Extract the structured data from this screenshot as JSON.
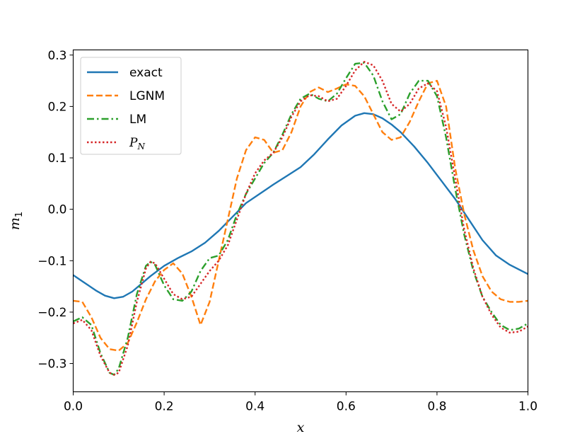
{
  "chart_data": {
    "type": "line",
    "title": "",
    "xlabel": "x",
    "ylabel": "m",
    "ylabel_sub": "1",
    "xlim": [
      0.0,
      1.0
    ],
    "ylim": [
      -0.355,
      0.31
    ],
    "xticks": [
      0.0,
      0.2,
      0.4,
      0.6,
      0.8,
      1.0
    ],
    "xtick_labels": [
      "0.0",
      "0.2",
      "0.4",
      "0.6",
      "0.8",
      "1.0"
    ],
    "yticks": [
      -0.3,
      -0.2,
      -0.1,
      0.0,
      0.1,
      0.2,
      0.3
    ],
    "ytick_labels": [
      "−0.3",
      "−0.2",
      "−0.1",
      "0.0",
      "0.1",
      "0.2",
      "0.3"
    ],
    "grid": false,
    "legend_position": "top-left",
    "series": [
      {
        "name": "exact",
        "color": "#1f77b4",
        "style": "solid",
        "x": [
          0.0,
          0.02,
          0.05,
          0.07,
          0.09,
          0.11,
          0.13,
          0.15,
          0.17,
          0.2,
          0.23,
          0.26,
          0.29,
          0.32,
          0.35,
          0.38,
          0.41,
          0.44,
          0.47,
          0.5,
          0.53,
          0.56,
          0.59,
          0.62,
          0.64,
          0.66,
          0.68,
          0.7,
          0.72,
          0.75,
          0.78,
          0.81,
          0.84,
          0.87,
          0.9,
          0.93,
          0.96,
          1.0
        ],
        "y": [
          -0.128,
          -0.14,
          -0.158,
          -0.168,
          -0.173,
          -0.17,
          -0.16,
          -0.145,
          -0.13,
          -0.11,
          -0.095,
          -0.082,
          -0.065,
          -0.042,
          -0.015,
          0.012,
          0.03,
          0.048,
          0.065,
          0.082,
          0.107,
          0.136,
          0.163,
          0.182,
          0.187,
          0.185,
          0.177,
          0.165,
          0.15,
          0.122,
          0.09,
          0.055,
          0.02,
          -0.02,
          -0.06,
          -0.09,
          -0.108,
          -0.126
        ]
      },
      {
        "name": "LGNM",
        "color": "#ff7f0e",
        "style": "dashed",
        "x": [
          0.0,
          0.02,
          0.04,
          0.06,
          0.08,
          0.1,
          0.12,
          0.14,
          0.16,
          0.18,
          0.2,
          0.22,
          0.24,
          0.26,
          0.28,
          0.3,
          0.32,
          0.34,
          0.36,
          0.38,
          0.4,
          0.42,
          0.44,
          0.46,
          0.48,
          0.5,
          0.52,
          0.54,
          0.56,
          0.58,
          0.6,
          0.62,
          0.64,
          0.66,
          0.68,
          0.7,
          0.72,
          0.74,
          0.76,
          0.78,
          0.8,
          0.82,
          0.84,
          0.86,
          0.88,
          0.9,
          0.92,
          0.94,
          0.96,
          0.98,
          1.0
        ],
        "y": [
          -0.178,
          -0.18,
          -0.21,
          -0.25,
          -0.272,
          -0.275,
          -0.26,
          -0.22,
          -0.175,
          -0.14,
          -0.118,
          -0.105,
          -0.125,
          -0.17,
          -0.225,
          -0.18,
          -0.1,
          -0.02,
          0.06,
          0.115,
          0.14,
          0.135,
          0.11,
          0.115,
          0.15,
          0.2,
          0.228,
          0.237,
          0.228,
          0.235,
          0.243,
          0.24,
          0.22,
          0.185,
          0.15,
          0.135,
          0.14,
          0.17,
          0.21,
          0.245,
          0.25,
          0.2,
          0.08,
          -0.01,
          -0.08,
          -0.13,
          -0.16,
          -0.175,
          -0.18,
          -0.18,
          -0.178
        ]
      },
      {
        "name": "LM",
        "color": "#2ca02c",
        "style": "dashdot",
        "x": [
          0.0,
          0.02,
          0.04,
          0.06,
          0.08,
          0.09,
          0.1,
          0.12,
          0.14,
          0.16,
          0.17,
          0.18,
          0.2,
          0.22,
          0.24,
          0.26,
          0.28,
          0.3,
          0.32,
          0.34,
          0.36,
          0.38,
          0.4,
          0.42,
          0.44,
          0.46,
          0.48,
          0.5,
          0.52,
          0.54,
          0.56,
          0.58,
          0.6,
          0.62,
          0.64,
          0.66,
          0.68,
          0.7,
          0.72,
          0.74,
          0.76,
          0.78,
          0.8,
          0.82,
          0.84,
          0.86,
          0.88,
          0.9,
          0.92,
          0.94,
          0.96,
          0.98,
          1.0
        ],
        "y": [
          -0.218,
          -0.21,
          -0.225,
          -0.28,
          -0.318,
          -0.322,
          -0.31,
          -0.25,
          -0.165,
          -0.11,
          -0.102,
          -0.108,
          -0.148,
          -0.175,
          -0.178,
          -0.16,
          -0.12,
          -0.095,
          -0.09,
          -0.06,
          -0.01,
          0.03,
          0.06,
          0.09,
          0.11,
          0.145,
          0.185,
          0.215,
          0.225,
          0.215,
          0.21,
          0.225,
          0.255,
          0.283,
          0.285,
          0.26,
          0.21,
          0.175,
          0.185,
          0.225,
          0.25,
          0.25,
          0.22,
          0.14,
          0.04,
          -0.05,
          -0.12,
          -0.17,
          -0.2,
          -0.225,
          -0.235,
          -0.232,
          -0.222
        ]
      },
      {
        "name": "P_N",
        "color": "#d62728",
        "style": "dotted",
        "x": [
          0.0,
          0.02,
          0.04,
          0.06,
          0.08,
          0.09,
          0.1,
          0.12,
          0.14,
          0.16,
          0.17,
          0.18,
          0.2,
          0.22,
          0.24,
          0.26,
          0.28,
          0.3,
          0.32,
          0.34,
          0.36,
          0.38,
          0.4,
          0.42,
          0.44,
          0.46,
          0.48,
          0.5,
          0.52,
          0.54,
          0.56,
          0.58,
          0.6,
          0.62,
          0.64,
          0.66,
          0.68,
          0.7,
          0.72,
          0.74,
          0.76,
          0.78,
          0.8,
          0.82,
          0.84,
          0.86,
          0.88,
          0.9,
          0.92,
          0.94,
          0.96,
          0.98,
          1.0
        ],
        "y": [
          -0.222,
          -0.215,
          -0.235,
          -0.285,
          -0.318,
          -0.322,
          -0.318,
          -0.265,
          -0.18,
          -0.115,
          -0.102,
          -0.105,
          -0.135,
          -0.165,
          -0.175,
          -0.17,
          -0.145,
          -0.12,
          -0.1,
          -0.07,
          -0.02,
          0.03,
          0.07,
          0.095,
          0.11,
          0.14,
          0.18,
          0.21,
          0.222,
          0.22,
          0.21,
          0.215,
          0.24,
          0.27,
          0.287,
          0.28,
          0.25,
          0.205,
          0.19,
          0.205,
          0.235,
          0.245,
          0.23,
          0.16,
          0.06,
          -0.04,
          -0.115,
          -0.17,
          -0.205,
          -0.23,
          -0.24,
          -0.238,
          -0.228
        ]
      }
    ]
  }
}
